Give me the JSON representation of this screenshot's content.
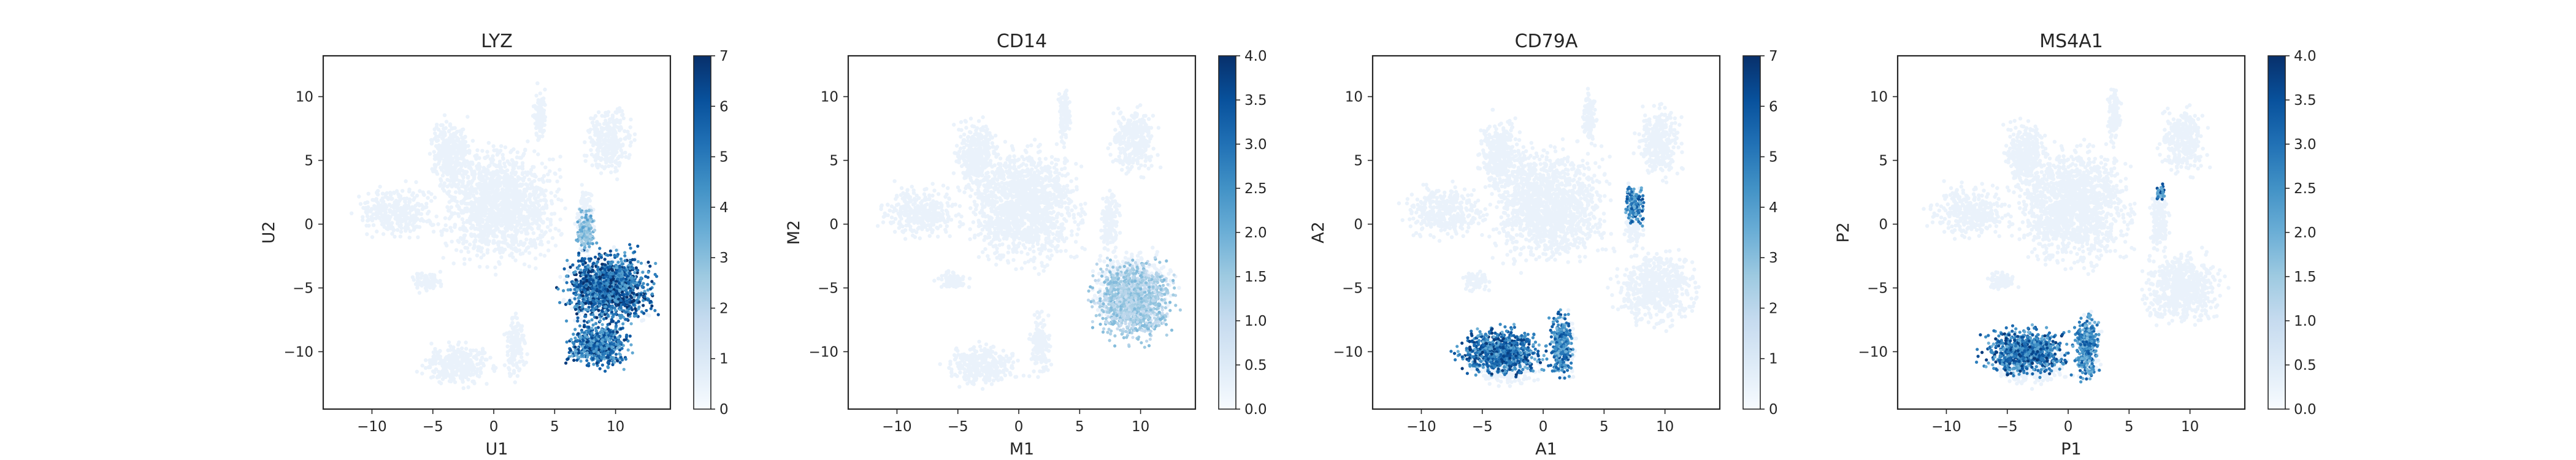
{
  "chart_data": [
    {
      "type": "scatter",
      "title": "LYZ",
      "xlabel": "U1",
      "ylabel": "U2",
      "xlim": [
        -14,
        14.5
      ],
      "ylim": [
        -14.5,
        13.2
      ],
      "xticks": [
        -10,
        -5,
        0,
        5,
        10
      ],
      "yticks": [
        -10,
        -5,
        0,
        5,
        10
      ],
      "colorbar": {
        "min": 0,
        "max": 7,
        "ticks": [
          0,
          1,
          2,
          3,
          4,
          5,
          6,
          7
        ],
        "cmap": "Blues"
      },
      "high_expression_regions": [
        {
          "cx": 9.5,
          "cy": -5.0,
          "rx": 3.8,
          "ry": 3.0,
          "level": 6.5
        },
        {
          "cx": 8.5,
          "cy": -9.5,
          "rx": 2.8,
          "ry": 1.8,
          "level": 6.0
        },
        {
          "cx": 7.6,
          "cy": -0.5,
          "rx": 0.8,
          "ry": 2.0,
          "level": 3.5
        }
      ],
      "grid": false
    },
    {
      "type": "scatter",
      "title": "CD14",
      "xlabel": "M1",
      "ylabel": "M2",
      "xlim": [
        -14,
        14.5
      ],
      "ylim": [
        -14.5,
        13.2
      ],
      "xticks": [
        -10,
        -5,
        0,
        5,
        10
      ],
      "yticks": [
        -10,
        -5,
        0,
        5,
        10
      ],
      "colorbar": {
        "min": 0,
        "max": 4,
        "ticks": [
          0.0,
          0.5,
          1.0,
          1.5,
          2.0,
          2.5,
          3.0,
          3.5,
          4.0
        ],
        "cmap": "Blues"
      },
      "high_expression_regions": [
        {
          "cx": 9.5,
          "cy": -6.0,
          "rx": 3.5,
          "ry": 3.2,
          "level": 1.6
        }
      ],
      "grid": false
    },
    {
      "type": "scatter",
      "title": "CD79A",
      "xlabel": "A1",
      "ylabel": "A2",
      "xlim": [
        -14,
        14.5
      ],
      "ylim": [
        -14.5,
        13.2
      ],
      "xticks": [
        -10,
        -5,
        0,
        5,
        10
      ],
      "yticks": [
        -10,
        -5,
        0,
        5,
        10
      ],
      "colorbar": {
        "min": 0,
        "max": 7,
        "ticks": [
          0,
          1,
          2,
          3,
          4,
          5,
          6,
          7
        ],
        "cmap": "Blues"
      },
      "high_expression_regions": [
        {
          "cx": -3.5,
          "cy": -10.0,
          "rx": 3.6,
          "ry": 2.0,
          "level": 6.0
        },
        {
          "cx": 1.5,
          "cy": -9.5,
          "rx": 1.0,
          "ry": 2.8,
          "level": 5.5
        },
        {
          "cx": 7.5,
          "cy": 1.5,
          "rx": 0.9,
          "ry": 1.6,
          "level": 5.5
        }
      ],
      "grid": false
    },
    {
      "type": "scatter",
      "title": "MS4A1",
      "xlabel": "P1",
      "ylabel": "P2",
      "xlim": [
        -14,
        14.5
      ],
      "ylim": [
        -14.5,
        13.2
      ],
      "xticks": [
        -10,
        -5,
        0,
        5,
        10
      ],
      "yticks": [
        -10,
        -5,
        0,
        5,
        10
      ],
      "colorbar": {
        "min": 0,
        "max": 4,
        "ticks": [
          0.0,
          0.5,
          1.0,
          1.5,
          2.0,
          2.5,
          3.0,
          3.5,
          4.0
        ],
        "cmap": "Blues"
      },
      "high_expression_regions": [
        {
          "cx": -3.5,
          "cy": -10.0,
          "rx": 3.6,
          "ry": 2.0,
          "level": 3.4
        },
        {
          "cx": 1.5,
          "cy": -9.5,
          "rx": 1.0,
          "ry": 2.8,
          "level": 3.0
        },
        {
          "cx": 7.6,
          "cy": 2.5,
          "rx": 0.4,
          "ry": 0.9,
          "level": 3.2
        }
      ],
      "grid": false
    }
  ]
}
